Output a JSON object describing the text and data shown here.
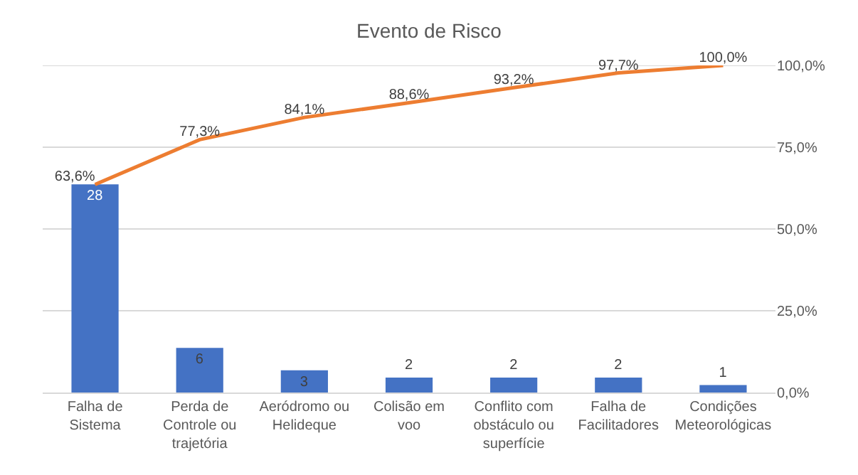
{
  "chart_data": {
    "type": "bar",
    "title": "Evento de Risco",
    "categories": [
      "Falha de Sistema",
      "Perda de Controle ou trajetória",
      "Aeródromo ou Helideque",
      "Colisão em voo",
      "Conflito com obstáculo ou superfície",
      "Falha de Facilitadores",
      "Condições Meteorológicas"
    ],
    "series": [
      {
        "color": "#4472c4",
        "values": [
          28,
          6,
          3,
          2,
          2,
          2,
          1
        ],
        "value_labels": [
          "28",
          "6",
          "3",
          "2",
          "2",
          "2",
          "1"
        ]
      },
      {
        "type": "line",
        "axis": "y2",
        "color": "#ed7d31",
        "values": [
          63.6,
          77.3,
          84.1,
          88.6,
          93.2,
          97.7,
          100.0
        ],
        "value_labels": [
          "63,6%",
          "77,3%",
          "84,1%",
          "88,6%",
          "93,2%",
          "97,7%",
          "100,0%"
        ]
      }
    ],
    "y2lim": [
      0,
      100
    ],
    "y2ticks": [
      {
        "value": 0,
        "label": "0,0%"
      },
      {
        "value": 25,
        "label": "25,0%"
      },
      {
        "value": 50,
        "label": "50,0%"
      },
      {
        "value": 75,
        "label": "75,0%"
      },
      {
        "value": 100,
        "label": "100,0%"
      }
    ],
    "tick_labels": "x",
    "grid": true,
    "legend": false
  }
}
